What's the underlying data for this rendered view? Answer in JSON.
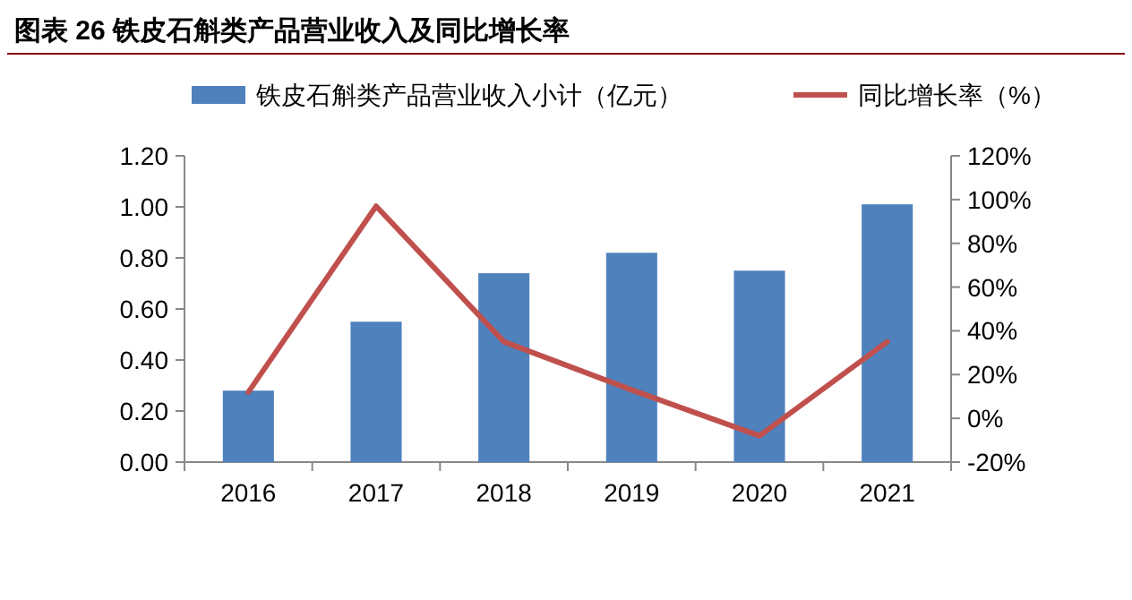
{
  "chart_data": {
    "type": "bar",
    "title": "图表 26 铁皮石斛类产品营业收入及同比增长率",
    "categories": [
      "2016",
      "2017",
      "2018",
      "2019",
      "2020",
      "2021"
    ],
    "series": [
      {
        "name": "铁皮石斛类产品营业收入小计（亿元）",
        "color": "#4f81bd",
        "values": [
          0.28,
          0.55,
          0.74,
          0.82,
          0.75,
          1.01
        ]
      },
      {
        "name": "同比增长率（%）",
        "type": "line",
        "axis": "y2",
        "color": "#c0504d",
        "values": [
          12,
          97,
          35,
          13,
          -8,
          35
        ]
      }
    ],
    "ylim": [
      0,
      1.2
    ],
    "yticks": [
      {
        "value": 0,
        "label": "0.00"
      },
      {
        "value": 0.2,
        "label": "0.20"
      },
      {
        "value": 0.4,
        "label": "0.40"
      },
      {
        "value": 0.6,
        "label": "0.60"
      },
      {
        "value": 0.8,
        "label": "0.80"
      },
      {
        "value": 1,
        "label": "1.00"
      },
      {
        "value": 1.2,
        "label": "1.20"
      }
    ],
    "y2lim": [
      -20,
      120
    ],
    "y2ticks": [
      {
        "value": -20,
        "label": "-20%"
      },
      {
        "value": 0,
        "label": "0%"
      },
      {
        "value": 20,
        "label": "20%"
      },
      {
        "value": 40,
        "label": "40%"
      },
      {
        "value": 60,
        "label": "60%"
      },
      {
        "value": 80,
        "label": "80%"
      },
      {
        "value": 100,
        "label": "100%"
      },
      {
        "value": 120,
        "label": "120%"
      }
    ],
    "legend": "top",
    "grid": false
  }
}
